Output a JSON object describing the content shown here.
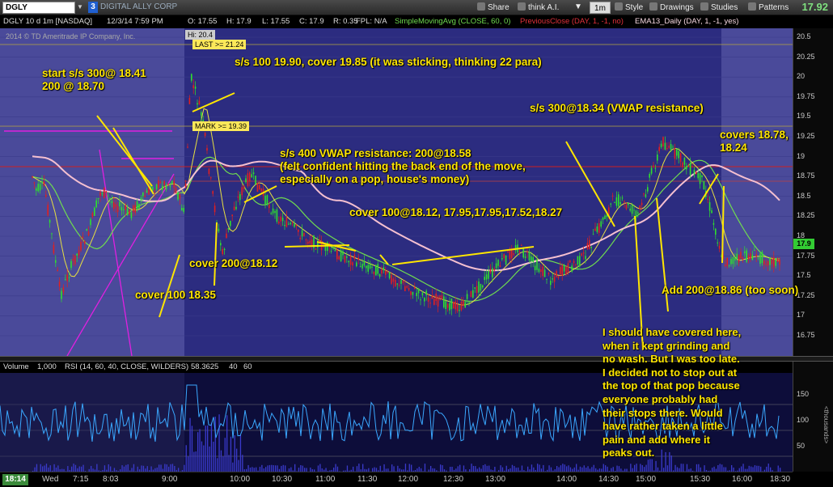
{
  "toolbar": {
    "symbol": "DGLY",
    "badge": "3",
    "app_name": "DIGITAL ALLY CORP",
    "share": "Share",
    "think_ai": "think A.I.",
    "timeframe": "1m",
    "style": "Style",
    "drawings": "Drawings",
    "studies": "Studies",
    "patterns": "Patterns",
    "last_price": "17.92"
  },
  "infobar": {
    "desc": "DGLY 10 d 1m [NASDAQ]",
    "datetime": "12/3/14 7:59 PM",
    "open": "O: 17.55",
    "high": "H: 17.9",
    "low": "L: 17.55",
    "close": "C: 17.9",
    "range": "R: 0.35",
    "fpl": "FPL: N/A",
    "sma": "SimpleMovingAvg (CLOSE, 60, 0)",
    "prev_close": "PreviousClose (DAY, 1, -1, no)",
    "ema": "EMA13_Daily (DAY, 1, -1, yes)",
    "colors": {
      "sma": "#6fdc4f",
      "prev_close": "#e0303a",
      "ema": "#f5d7e0"
    }
  },
  "chart": {
    "copyright": "2014 © TD Ameritrade IP Company, Inc.",
    "hi_tag": "Hi: 20.4",
    "last_tag": "LAST >= 21.24",
    "mark_tag": "MARK >= 19.39",
    "price_tag": "17.9",
    "price_ticks": [
      "20.5",
      "20.25",
      "20",
      "19.75",
      "19.5",
      "19.25",
      "19",
      "18.75",
      "18.5",
      "18.25",
      "18",
      "17.75",
      "17.5",
      "17.25",
      "17",
      "16.75"
    ]
  },
  "annotations": {
    "a1": "start s/s 300@ 18.41\n200 @ 18.70",
    "a2": "s/s 100 19.90, cover 19.85 (it was sticking, thinking 22 para)",
    "a3": "s/s 400 VWAP resistance: 200@18.58\n(felt confident hitting the back end of the move,\nespecially on a pop, house's money)",
    "a4": "cover 100@18.12, 17.95,17.95,17.52,18.27",
    "a5": "cover 200@18.12",
    "a6": "cover 100 18.35",
    "a7": "s/s 300@18.34 (VWAP resistance)",
    "a8": "covers 18.78,\n18.24",
    "a9": "Add 200@18.86 (too soon)",
    "a10": "I should have covered here,\nwhen it kept grinding and\nno wash. But I was too late.\nI decided not to stop out at\nthe top of that pop because\neveryone probably had\ntheir stops there. Would\nhave rather taken a little\npain and add where it\npeaks out."
  },
  "lower": {
    "volume": "Volume",
    "vol_scale": "1,000",
    "rsi": "RSI (14, 60, 40, CLOSE, WILDERS)",
    "rsi_value": "58.3625",
    "ob": "40",
    "os": "60",
    "ticks": [
      "150",
      "100",
      "50"
    ],
    "axis_label": "<thousands>"
  },
  "time_axis": {
    "current": "18:14",
    "labels": [
      "Wed",
      "7:15",
      "8:03",
      "9:00",
      "10:00",
      "10:30",
      "11:00",
      "11:30",
      "12:00",
      "12:30",
      "13:00",
      "14:00",
      "14:30",
      "15:00",
      "15:30",
      "16:00",
      "18:30"
    ]
  }
}
